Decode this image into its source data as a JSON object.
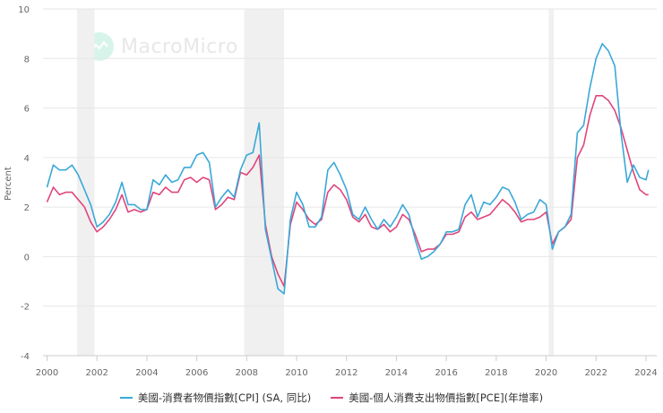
{
  "watermark": {
    "text": "MacroMicro"
  },
  "chart_data": {
    "type": "line",
    "title": "",
    "xlabel": "",
    "ylabel": "Percent",
    "ylim": [
      -4,
      10
    ],
    "xlim": [
      2000,
      2024.4
    ],
    "yticks": [
      -4,
      -2,
      0,
      2,
      4,
      6,
      8,
      10
    ],
    "xticks": [
      2000,
      2002,
      2004,
      2006,
      2008,
      2010,
      2012,
      2014,
      2016,
      2018,
      2020,
      2022,
      2024
    ],
    "grid": true,
    "legend_position": "bottom",
    "recessions": [
      [
        2001.2,
        2001.9
      ],
      [
        2007.9,
        2009.5
      ],
      [
        2020.1,
        2020.3
      ]
    ],
    "series": [
      {
        "name": "美國-消費者物價指數[CPI] (SA, 同比)",
        "color": "#3aa8d8",
        "x": [
          2000.0,
          2000.25,
          2000.5,
          2000.75,
          2001.0,
          2001.25,
          2001.5,
          2001.75,
          2002.0,
          2002.25,
          2002.5,
          2002.75,
          2003.0,
          2003.25,
          2003.5,
          2003.75,
          2004.0,
          2004.25,
          2004.5,
          2004.75,
          2005.0,
          2005.25,
          2005.5,
          2005.75,
          2006.0,
          2006.25,
          2006.5,
          2006.75,
          2007.0,
          2007.25,
          2007.5,
          2007.75,
          2008.0,
          2008.25,
          2008.5,
          2008.75,
          2009.0,
          2009.25,
          2009.5,
          2009.75,
          2010.0,
          2010.25,
          2010.5,
          2010.75,
          2011.0,
          2011.25,
          2011.5,
          2011.75,
          2012.0,
          2012.25,
          2012.5,
          2012.75,
          2013.0,
          2013.25,
          2013.5,
          2013.75,
          2014.0,
          2014.25,
          2014.5,
          2014.75,
          2015.0,
          2015.25,
          2015.5,
          2015.75,
          2016.0,
          2016.25,
          2016.5,
          2016.75,
          2017.0,
          2017.25,
          2017.5,
          2017.75,
          2018.0,
          2018.25,
          2018.5,
          2018.75,
          2019.0,
          2019.25,
          2019.5,
          2019.75,
          2020.0,
          2020.25,
          2020.5,
          2020.75,
          2021.0,
          2021.25,
          2021.5,
          2021.75,
          2022.0,
          2022.25,
          2022.5,
          2022.75,
          2023.0,
          2023.25,
          2023.5,
          2023.75,
          2024.0,
          2024.1
        ],
        "values": [
          2.8,
          3.7,
          3.5,
          3.5,
          3.7,
          3.3,
          2.7,
          2.1,
          1.2,
          1.4,
          1.7,
          2.2,
          3.0,
          2.1,
          2.1,
          1.9,
          1.9,
          3.1,
          2.9,
          3.3,
          3.0,
          3.1,
          3.6,
          3.6,
          4.1,
          4.2,
          3.8,
          2.0,
          2.4,
          2.7,
          2.4,
          3.5,
          4.1,
          4.2,
          5.4,
          1.1,
          -0.1,
          -1.3,
          -1.5,
          1.5,
          2.6,
          2.1,
          1.2,
          1.2,
          1.6,
          3.5,
          3.8,
          3.3,
          2.7,
          1.7,
          1.5,
          2.0,
          1.5,
          1.1,
          1.5,
          1.2,
          1.6,
          2.1,
          1.7,
          0.7,
          -0.1,
          0.0,
          0.2,
          0.5,
          1.0,
          1.0,
          1.1,
          2.1,
          2.5,
          1.6,
          2.2,
          2.1,
          2.4,
          2.8,
          2.7,
          2.2,
          1.5,
          1.7,
          1.8,
          2.3,
          2.1,
          0.3,
          1.0,
          1.2,
          1.7,
          5.0,
          5.3,
          6.8,
          8.0,
          8.6,
          8.3,
          7.7,
          5.0,
          3.0,
          3.7,
          3.2,
          3.1,
          3.5
        ]
      },
      {
        "name": "美國-個人消費支出物價指數[PCE](年增率)",
        "color": "#e0457b",
        "x": [
          2000.0,
          2000.25,
          2000.5,
          2000.75,
          2001.0,
          2001.25,
          2001.5,
          2001.75,
          2002.0,
          2002.25,
          2002.5,
          2002.75,
          2003.0,
          2003.25,
          2003.5,
          2003.75,
          2004.0,
          2004.25,
          2004.5,
          2004.75,
          2005.0,
          2005.25,
          2005.5,
          2005.75,
          2006.0,
          2006.25,
          2006.5,
          2006.75,
          2007.0,
          2007.25,
          2007.5,
          2007.75,
          2008.0,
          2008.25,
          2008.5,
          2008.75,
          2009.0,
          2009.25,
          2009.5,
          2009.75,
          2010.0,
          2010.25,
          2010.5,
          2010.75,
          2011.0,
          2011.25,
          2011.5,
          2011.75,
          2012.0,
          2012.25,
          2012.5,
          2012.75,
          2013.0,
          2013.25,
          2013.5,
          2013.75,
          2014.0,
          2014.25,
          2014.5,
          2014.75,
          2015.0,
          2015.25,
          2015.5,
          2015.75,
          2016.0,
          2016.25,
          2016.5,
          2016.75,
          2017.0,
          2017.25,
          2017.5,
          2017.75,
          2018.0,
          2018.25,
          2018.5,
          2018.75,
          2019.0,
          2019.25,
          2019.5,
          2019.75,
          2020.0,
          2020.25,
          2020.5,
          2020.75,
          2021.0,
          2021.25,
          2021.5,
          2021.75,
          2022.0,
          2022.25,
          2022.5,
          2022.75,
          2023.0,
          2023.25,
          2023.5,
          2023.75,
          2024.0,
          2024.1
        ],
        "values": [
          2.2,
          2.8,
          2.5,
          2.6,
          2.6,
          2.3,
          2.0,
          1.4,
          1.0,
          1.2,
          1.5,
          1.9,
          2.5,
          1.8,
          1.9,
          1.8,
          1.9,
          2.6,
          2.5,
          2.8,
          2.6,
          2.6,
          3.1,
          3.2,
          3.0,
          3.2,
          3.1,
          1.9,
          2.1,
          2.4,
          2.3,
          3.4,
          3.3,
          3.6,
          4.1,
          1.3,
          0.0,
          -0.7,
          -1.2,
          1.3,
          2.2,
          1.9,
          1.5,
          1.3,
          1.5,
          2.6,
          2.9,
          2.7,
          2.3,
          1.6,
          1.4,
          1.7,
          1.2,
          1.1,
          1.3,
          1.0,
          1.2,
          1.7,
          1.5,
          0.9,
          0.2,
          0.3,
          0.3,
          0.5,
          0.9,
          0.9,
          1.0,
          1.6,
          1.8,
          1.5,
          1.6,
          1.7,
          2.0,
          2.3,
          2.1,
          1.8,
          1.4,
          1.5,
          1.5,
          1.6,
          1.8,
          0.5,
          1.0,
          1.2,
          1.5,
          4.0,
          4.5,
          5.7,
          6.5,
          6.5,
          6.3,
          5.9,
          5.2,
          4.3,
          3.4,
          2.7,
          2.5,
          2.5
        ]
      }
    ]
  },
  "legend": {
    "cpi_label": "美國-消費者物價指數[CPI] (SA, 同比)",
    "pce_label": "美國-個人消費支出物價指數[PCE](年增率)"
  }
}
